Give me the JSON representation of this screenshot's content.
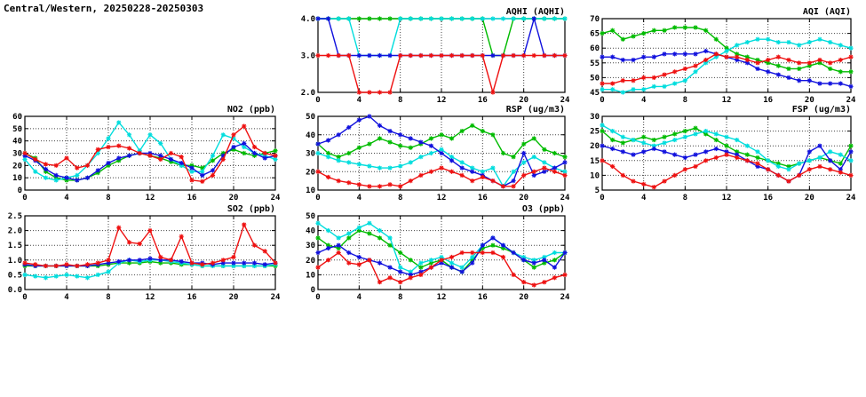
{
  "page_title": "Central/Western, 20250228-20250303",
  "colors": {
    "red": "#ee1111",
    "green": "#00bb00",
    "blue": "#1111dd",
    "cyan": "#00dddd",
    "frame": "#000000",
    "grid": "#444444"
  },
  "x_hours": [
    0,
    1,
    2,
    3,
    4,
    5,
    6,
    7,
    8,
    9,
    10,
    11,
    12,
    13,
    14,
    15,
    16,
    17,
    18,
    19,
    20,
    21,
    22,
    23,
    24
  ],
  "xticks": [
    0,
    4,
    8,
    12,
    16,
    20,
    24
  ],
  "chart_data": [
    {
      "id": "aqhi",
      "type": "line",
      "title": "AQHI (AQHI)",
      "xlim": [
        0,
        24
      ],
      "ylim": [
        2,
        4
      ],
      "yticks": [
        2,
        3,
        4
      ],
      "ydec": 1,
      "series": [
        {
          "name": "green",
          "color": "#00bb00",
          "values": [
            4,
            4,
            4,
            4,
            4,
            4,
            4,
            4,
            4,
            4,
            4,
            4,
            4,
            4,
            4,
            4,
            4,
            3,
            3,
            4,
            4,
            4,
            4,
            4,
            4
          ]
        },
        {
          "name": "cyan",
          "color": "#00dddd",
          "values": [
            4,
            4,
            4,
            4,
            3,
            3,
            3,
            3,
            4,
            4,
            4,
            4,
            4,
            4,
            4,
            4,
            4,
            4,
            4,
            4,
            4,
            4,
            4,
            4,
            4
          ]
        },
        {
          "name": "blue",
          "color": "#1111dd",
          "values": [
            4,
            4,
            3,
            3,
            3,
            3,
            3,
            3,
            3,
            3,
            3,
            3,
            3,
            3,
            3,
            3,
            3,
            3,
            3,
            3,
            3,
            4,
            3,
            3,
            3
          ]
        },
        {
          "name": "red",
          "color": "#ee1111",
          "values": [
            3,
            3,
            3,
            3,
            2,
            2,
            2,
            2,
            3,
            3,
            3,
            3,
            3,
            3,
            3,
            3,
            3,
            2,
            3,
            3,
            3,
            3,
            3,
            3,
            3
          ]
        }
      ]
    },
    {
      "id": "aqi",
      "type": "line",
      "title": "AQI (AQI)",
      "xlim": [
        0,
        24
      ],
      "ylim": [
        45,
        70
      ],
      "yticks": [
        45,
        50,
        55,
        60,
        65,
        70
      ],
      "ydec": 0,
      "series": [
        {
          "name": "green",
          "color": "#00bb00",
          "values": [
            65,
            66,
            63,
            64,
            65,
            66,
            66,
            67,
            67,
            67,
            66,
            63,
            60,
            58,
            57,
            56,
            55,
            54,
            53,
            53,
            54,
            55,
            53,
            52,
            52
          ]
        },
        {
          "name": "cyan",
          "color": "#00dddd",
          "values": [
            46,
            46,
            45,
            46,
            46,
            47,
            47,
            48,
            49,
            52,
            55,
            57,
            59,
            61,
            62,
            63,
            63,
            62,
            62,
            61,
            62,
            63,
            62,
            61,
            60
          ]
        },
        {
          "name": "blue",
          "color": "#1111dd",
          "values": [
            57,
            57,
            56,
            56,
            57,
            57,
            58,
            58,
            58,
            58,
            59,
            58,
            57,
            56,
            55,
            53,
            52,
            51,
            50,
            49,
            49,
            48,
            48,
            48,
            47
          ]
        },
        {
          "name": "red",
          "color": "#ee1111",
          "values": [
            48,
            48,
            49,
            49,
            50,
            50,
            51,
            52,
            53,
            54,
            56,
            58,
            57,
            57,
            56,
            55,
            56,
            57,
            56,
            55,
            55,
            56,
            55,
            56,
            57
          ]
        }
      ]
    },
    {
      "id": "no2",
      "type": "line",
      "title": "NO2 (ppb)",
      "xlim": [
        0,
        24
      ],
      "ylim": [
        0,
        60
      ],
      "yticks": [
        0,
        10,
        20,
        30,
        40,
        50,
        60
      ],
      "ydec": 0,
      "series": [
        {
          "name": "green",
          "color": "#00bb00",
          "values": [
            30,
            26,
            15,
            10,
            8,
            8,
            10,
            14,
            20,
            24,
            28,
            30,
            28,
            26,
            23,
            20,
            20,
            18,
            24,
            30,
            33,
            30,
            28,
            30,
            32
          ]
        },
        {
          "name": "cyan",
          "color": "#00dddd",
          "values": [
            25,
            15,
            10,
            8,
            10,
            12,
            20,
            30,
            42,
            55,
            45,
            32,
            45,
            38,
            25,
            20,
            15,
            15,
            28,
            45,
            42,
            35,
            30,
            28,
            25
          ]
        },
        {
          "name": "blue",
          "color": "#1111dd",
          "values": [
            28,
            24,
            17,
            12,
            10,
            8,
            10,
            16,
            22,
            26,
            28,
            30,
            30,
            28,
            25,
            22,
            18,
            12,
            16,
            28,
            35,
            38,
            30,
            26,
            28
          ]
        },
        {
          "name": "red",
          "color": "#ee1111",
          "values": [
            30,
            25,
            21,
            20,
            26,
            18,
            20,
            33,
            35,
            36,
            34,
            30,
            28,
            25,
            30,
            27,
            8,
            7,
            12,
            25,
            45,
            52,
            35,
            30,
            28
          ]
        }
      ]
    },
    {
      "id": "rsp",
      "type": "line",
      "title": "RSP (ug/m3)",
      "xlim": [
        0,
        24
      ],
      "ylim": [
        10,
        50
      ],
      "yticks": [
        10,
        20,
        30,
        40,
        50
      ],
      "ydec": 0,
      "series": [
        {
          "name": "green",
          "color": "#00bb00",
          "values": [
            35,
            30,
            28,
            30,
            33,
            35,
            38,
            36,
            34,
            33,
            35,
            38,
            40,
            38,
            42,
            45,
            42,
            40,
            30,
            28,
            35,
            38,
            32,
            30,
            28
          ]
        },
        {
          "name": "cyan",
          "color": "#00dddd",
          "values": [
            30,
            28,
            26,
            25,
            24,
            23,
            22,
            22,
            23,
            25,
            28,
            30,
            32,
            28,
            25,
            22,
            20,
            22,
            12,
            20,
            25,
            28,
            25,
            22,
            20
          ]
        },
        {
          "name": "blue",
          "color": "#1111dd",
          "values": [
            35,
            37,
            40,
            44,
            48,
            50,
            45,
            42,
            40,
            38,
            36,
            34,
            30,
            26,
            22,
            20,
            18,
            15,
            12,
            15,
            30,
            18,
            20,
            22,
            25
          ]
        },
        {
          "name": "red",
          "color": "#ee1111",
          "values": [
            20,
            17,
            15,
            14,
            13,
            12,
            12,
            13,
            12,
            15,
            18,
            20,
            22,
            20,
            18,
            15,
            17,
            15,
            12,
            12,
            18,
            20,
            22,
            20,
            18
          ]
        }
      ]
    },
    {
      "id": "fsp",
      "type": "line",
      "title": "FSP (ug/m3)",
      "xlim": [
        0,
        24
      ],
      "ylim": [
        5,
        30
      ],
      "yticks": [
        5,
        10,
        15,
        20,
        25,
        30
      ],
      "ydec": 0,
      "series": [
        {
          "name": "green",
          "color": "#00bb00",
          "values": [
            25,
            22,
            21,
            22,
            23,
            22,
            23,
            24,
            25,
            26,
            24,
            22,
            20,
            18,
            17,
            16,
            15,
            14,
            13,
            14,
            15,
            16,
            15,
            14,
            20
          ]
        },
        {
          "name": "cyan",
          "color": "#00dddd",
          "values": [
            27,
            25,
            23,
            22,
            21,
            20,
            21,
            22,
            23,
            24,
            25,
            24,
            23,
            22,
            20,
            18,
            15,
            13,
            12,
            14,
            15,
            16,
            18,
            17,
            15
          ]
        },
        {
          "name": "blue",
          "color": "#1111dd",
          "values": [
            20,
            19,
            18,
            17,
            18,
            19,
            18,
            17,
            16,
            17,
            18,
            19,
            18,
            17,
            15,
            13,
            12,
            10,
            8,
            10,
            18,
            20,
            15,
            12,
            18
          ]
        },
        {
          "name": "red",
          "color": "#ee1111",
          "values": [
            15,
            13,
            10,
            8,
            7,
            6,
            8,
            10,
            12,
            13,
            15,
            16,
            17,
            16,
            15,
            14,
            12,
            10,
            8,
            10,
            12,
            13,
            12,
            11,
            10
          ]
        }
      ]
    },
    {
      "id": "so2",
      "type": "line",
      "title": "SO2 (ppb)",
      "xlim": [
        0,
        24
      ],
      "ylim": [
        0,
        2.5
      ],
      "yticks": [
        0,
        0.5,
        1,
        1.5,
        2,
        2.5
      ],
      "ydec": 1,
      "series": [
        {
          "name": "green",
          "color": "#00bb00",
          "values": [
            0.8,
            0.8,
            0.8,
            0.8,
            0.8,
            0.8,
            0.8,
            0.8,
            0.85,
            0.9,
            0.9,
            0.9,
            0.95,
            0.9,
            0.9,
            0.85,
            0.85,
            0.8,
            0.8,
            0.8,
            0.8,
            0.8,
            0.8,
            0.8,
            0.8
          ]
        },
        {
          "name": "cyan",
          "color": "#00dddd",
          "values": [
            0.5,
            0.45,
            0.4,
            0.45,
            0.5,
            0.45,
            0.4,
            0.5,
            0.6,
            0.9,
            1.0,
            0.95,
            1.0,
            1.0,
            0.95,
            0.9,
            0.85,
            0.8,
            0.8,
            0.8,
            0.8,
            0.8,
            0.8,
            0.8,
            0.85
          ]
        },
        {
          "name": "blue",
          "color": "#1111dd",
          "values": [
            0.85,
            0.8,
            0.8,
            0.8,
            0.8,
            0.8,
            0.8,
            0.85,
            0.9,
            0.95,
            1.0,
            1.0,
            1.05,
            1.0,
            1.0,
            0.95,
            0.9,
            0.9,
            0.85,
            0.9,
            0.9,
            0.9,
            0.9,
            0.85,
            0.9
          ]
        },
        {
          "name": "red",
          "color": "#ee1111",
          "values": [
            0.9,
            0.85,
            0.8,
            0.8,
            0.85,
            0.8,
            0.85,
            0.9,
            1.0,
            2.1,
            1.6,
            1.55,
            2.0,
            1.1,
            1.0,
            1.8,
            0.9,
            0.85,
            0.9,
            1.0,
            1.1,
            2.2,
            1.5,
            1.3,
            0.9
          ]
        }
      ]
    },
    {
      "id": "o3",
      "type": "line",
      "title": "O3 (ppb)",
      "xlim": [
        0,
        24
      ],
      "ylim": [
        0,
        50
      ],
      "yticks": [
        0,
        10,
        20,
        30,
        40,
        50
      ],
      "ydec": 0,
      "series": [
        {
          "name": "green",
          "color": "#00bb00",
          "values": [
            35,
            30,
            28,
            35,
            40,
            38,
            35,
            30,
            25,
            20,
            15,
            18,
            20,
            15,
            12,
            20,
            28,
            30,
            28,
            25,
            20,
            15,
            18,
            20,
            25
          ]
        },
        {
          "name": "cyan",
          "color": "#00dddd",
          "values": [
            45,
            40,
            35,
            38,
            42,
            45,
            40,
            35,
            15,
            12,
            18,
            20,
            22,
            18,
            15,
            22,
            30,
            35,
            30,
            25,
            22,
            20,
            22,
            25,
            25
          ]
        },
        {
          "name": "blue",
          "color": "#1111dd",
          "values": [
            25,
            28,
            30,
            25,
            22,
            20,
            18,
            15,
            12,
            10,
            12,
            15,
            18,
            15,
            12,
            18,
            30,
            35,
            30,
            25,
            20,
            18,
            20,
            15,
            25
          ]
        },
        {
          "name": "red",
          "color": "#ee1111",
          "values": [
            15,
            20,
            25,
            18,
            17,
            20,
            5,
            8,
            5,
            8,
            10,
            15,
            20,
            22,
            25,
            25,
            25,
            25,
            22,
            10,
            5,
            3,
            5,
            8,
            10
          ]
        }
      ]
    }
  ]
}
